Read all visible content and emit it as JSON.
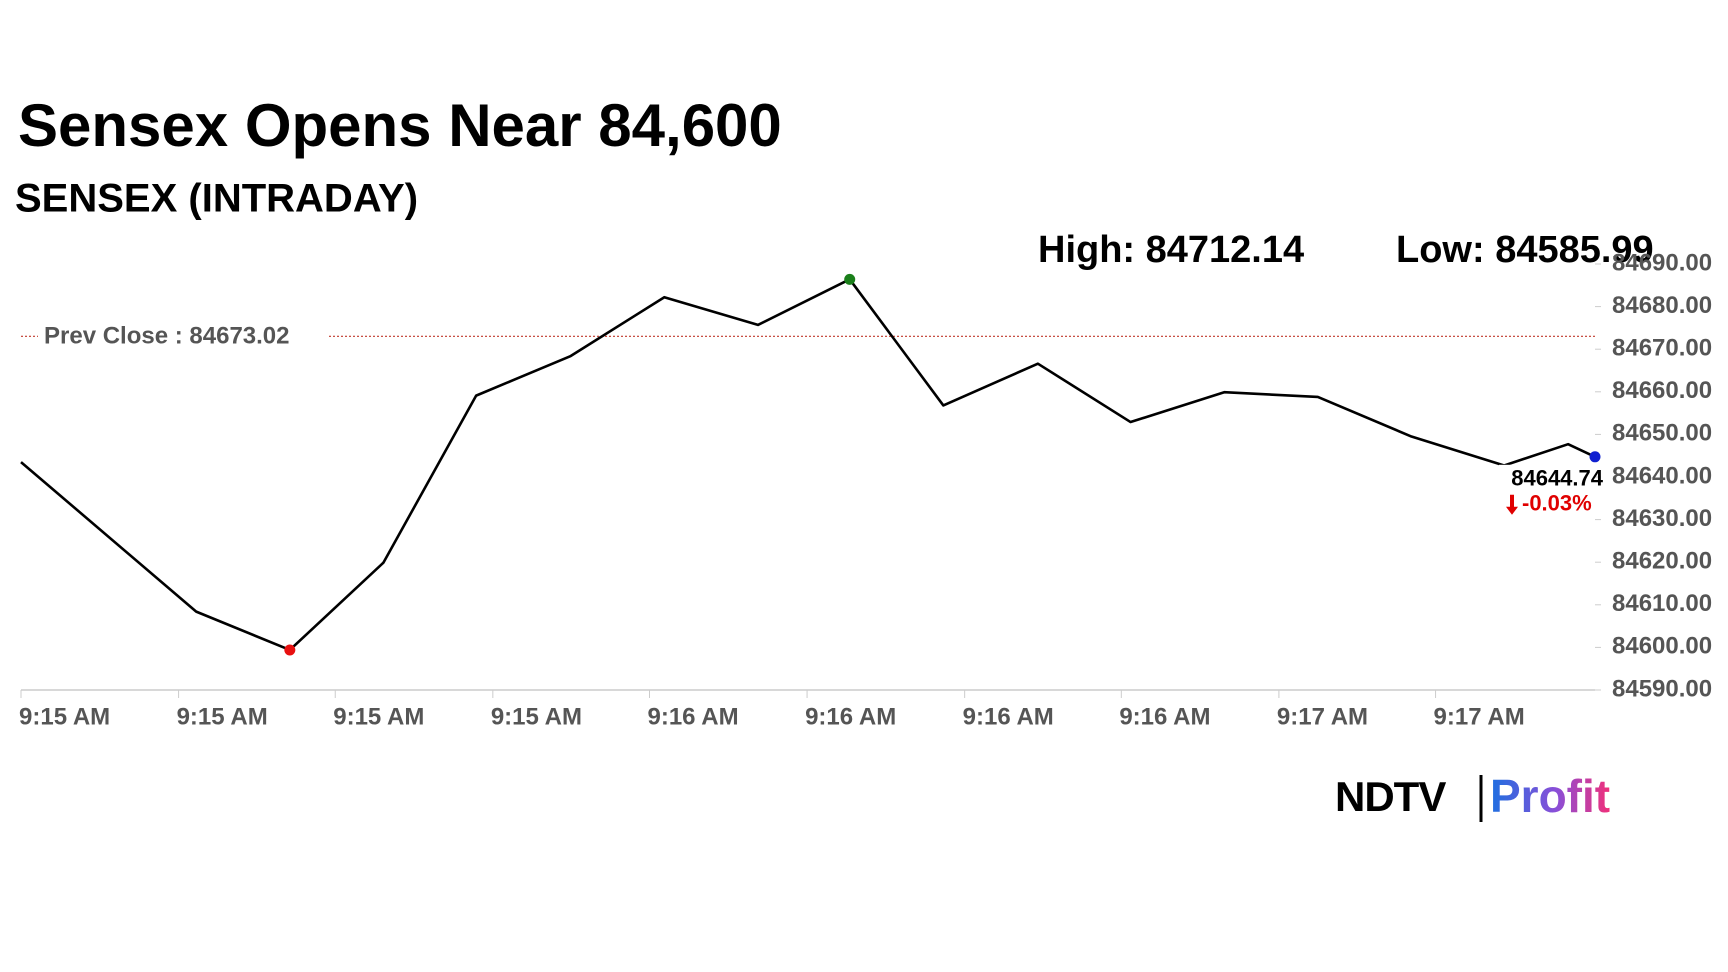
{
  "chart_data": {
    "type": "line",
    "title": "Sensex Opens Near 84,600",
    "subtitle": "SENSEX (INTRADAY)",
    "high_label": "High: 84712.14",
    "low_label": "Low: 84585.99",
    "reference_line": {
      "label": "Prev Close : 84673.02",
      "value": 84673.02,
      "color": "#c0392b"
    },
    "series": [
      {
        "name": "SENSEX",
        "color": "#000000",
        "x": [
          0,
          1.89,
          2.9,
          3.91,
          4.91,
          5.93,
          6.94,
          7.95,
          8.94,
          9.95,
          10.97,
          11.97,
          12.98,
          13.99,
          15.0,
          16.0,
          16.69,
          16.98
        ],
        "values": [
          84643.5,
          84608.4,
          84599.4,
          84619.9,
          84659.1,
          84668.4,
          84682.2,
          84675.7,
          84686.4,
          84656.8,
          84666.6,
          84652.9,
          84659.9,
          84658.8,
          84649.5,
          84642.7,
          84647.7,
          84644.74
        ]
      }
    ],
    "highlights": [
      {
        "index": 2,
        "color": "#e81010"
      },
      {
        "index": 8,
        "color": "#1a7f1a"
      },
      {
        "index": 17,
        "color": "#1020d0"
      }
    ],
    "last_value_label": "84644.74",
    "change_label": "-0.03%",
    "change_color": "#e00000",
    "xlim": [
      0,
      16.98
    ],
    "xticks": [
      {
        "value": 0,
        "label": "9:15 AM"
      },
      {
        "value": 1.7,
        "label": "9:15 AM"
      },
      {
        "value": 3.39,
        "label": "9:15 AM"
      },
      {
        "value": 5.09,
        "label": "9:15 AM"
      },
      {
        "value": 6.78,
        "label": "9:16 AM"
      },
      {
        "value": 8.48,
        "label": "9:16 AM"
      },
      {
        "value": 10.18,
        "label": "9:16 AM"
      },
      {
        "value": 11.87,
        "label": "9:16 AM"
      },
      {
        "value": 13.57,
        "label": "9:17 AM"
      },
      {
        "value": 15.26,
        "label": "9:17 AM"
      }
    ],
    "ylim": [
      84590,
      84690
    ],
    "yticks": [
      {
        "value": 84590,
        "label": "84590.00"
      },
      {
        "value": 84600,
        "label": "84600.00"
      },
      {
        "value": 84610,
        "label": "84610.00"
      },
      {
        "value": 84620,
        "label": "84620.00"
      },
      {
        "value": 84630,
        "label": "84630.00"
      },
      {
        "value": 84640,
        "label": "84640.00"
      },
      {
        "value": 84650,
        "label": "84650.00"
      },
      {
        "value": 84660,
        "label": "84660.00"
      },
      {
        "value": 84670,
        "label": "84670.00"
      },
      {
        "value": 84680,
        "label": "84680.00"
      },
      {
        "value": 84690,
        "label": "84690.00"
      }
    ],
    "grid": false,
    "logo": {
      "brand": "NDTV",
      "product": "Profit"
    }
  }
}
